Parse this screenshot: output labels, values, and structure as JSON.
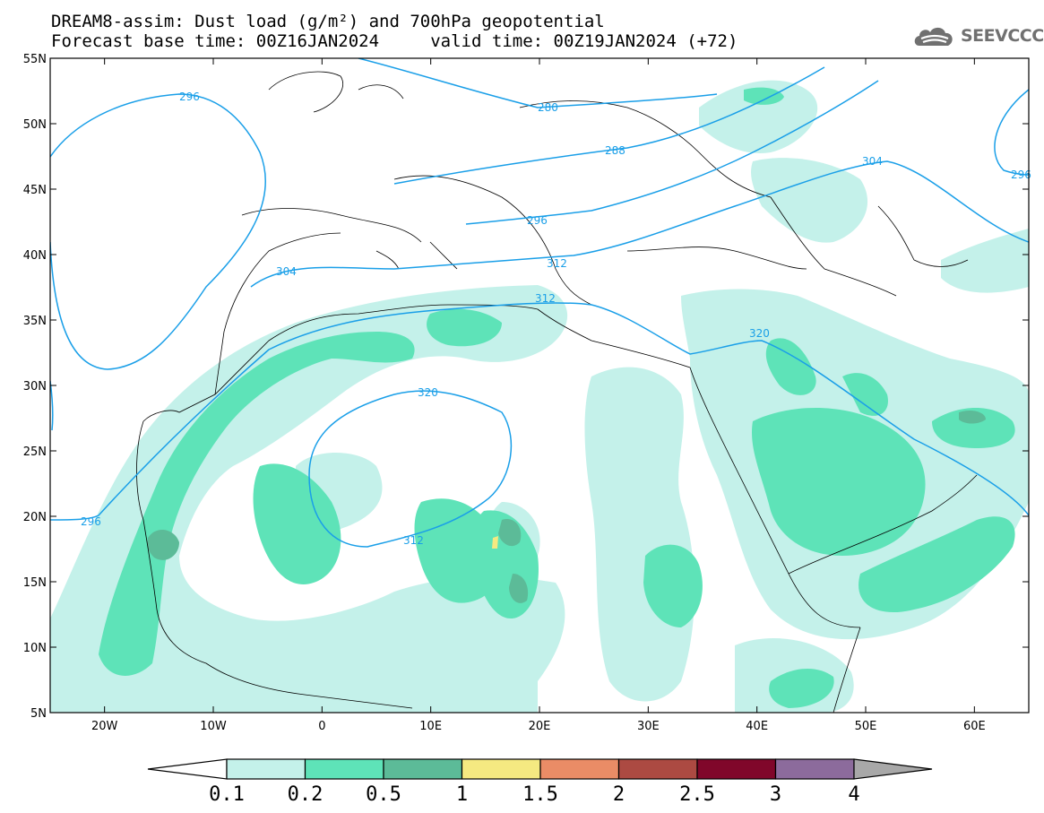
{
  "header": {
    "title_line1": "DREAM8-assim: Dust load (g/m²) and 700hPa geopotential",
    "title_line2": "Forecast base time: 00Z16JAN2024     valid time: 00Z19JAN2024 (+72)",
    "logo_text": "SEEVCCC",
    "logo_icon": "cloud-icon"
  },
  "map": {
    "lat_labels": [
      "55N",
      "50N",
      "45N",
      "40N",
      "35N",
      "30N",
      "25N",
      "20N",
      "15N",
      "10N",
      "5N"
    ],
    "lon_labels": [
      "20W",
      "10W",
      "0",
      "10E",
      "20E",
      "30E",
      "40E",
      "50E",
      "60E"
    ],
    "lon_range": [
      -25,
      65
    ],
    "lat_range": [
      5,
      55
    ],
    "contour_labels": [
      "296",
      "280",
      "288",
      "304",
      "296",
      "296",
      "304",
      "312",
      "312",
      "320",
      "320",
      "312",
      "296"
    ]
  },
  "colorbar": {
    "levels": [
      "0.1",
      "0.2",
      "0.5",
      "1",
      "1.5",
      "2",
      "2.5",
      "3",
      "4"
    ],
    "colors": [
      "#c4f1ea",
      "#5ee3b8",
      "#5cbb98",
      "#f5e981",
      "#ea8c66",
      "#ac4a42",
      "#80072a",
      "#8c6b9c",
      "#a8a8a8"
    ],
    "under_color": "#ffffff"
  },
  "styles": {
    "contour_color": "#1a9fe8",
    "dust_light": "#c4f1ea",
    "dust_medium": "#5ee3b8",
    "dust_dark": "#5cbb98",
    "dust_yellow": "#f5e981"
  }
}
